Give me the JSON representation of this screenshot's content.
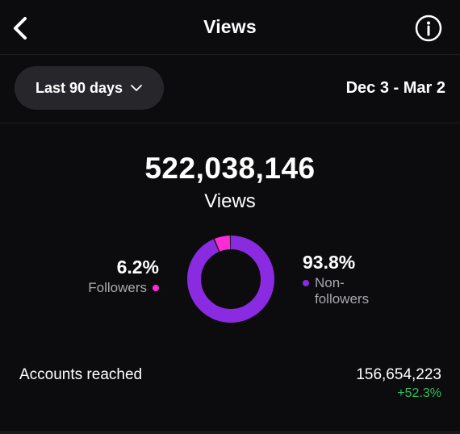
{
  "header": {
    "title": "Views",
    "back_icon": "chevron-left-icon",
    "info_icon": "info-icon"
  },
  "filter": {
    "range_label": "Last 90 days",
    "dropdown_icon": "chevron-down-icon",
    "date_range": "Dec 3 - Mar 2"
  },
  "summary": {
    "total": "522,038,146",
    "label": "Views"
  },
  "breakdown": {
    "followers": {
      "percent": "6.2%",
      "label": "Followers",
      "color": "#ff2bd6",
      "fraction": 0.062
    },
    "non_followers": {
      "percent": "93.8%",
      "label": "Non-followers",
      "color": "#8a2be2",
      "fraction": 0.938
    }
  },
  "reach": {
    "label": "Accounts reached",
    "value": "156,654,223",
    "change": "+52.3%",
    "change_color": "#2fbf5f"
  },
  "colors": {
    "background": "#0c0c0e",
    "pill": "#27272b"
  }
}
